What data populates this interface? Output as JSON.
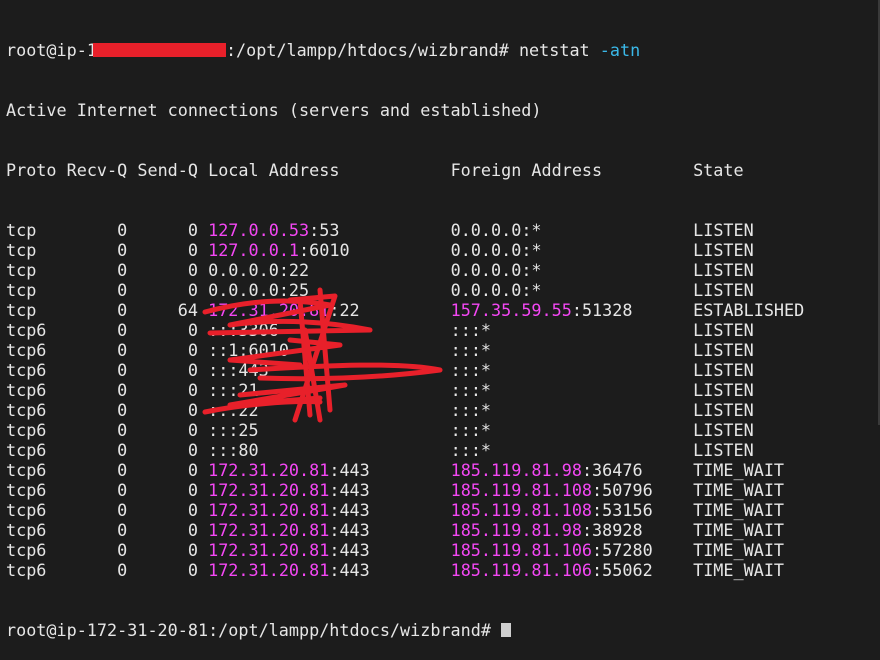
{
  "terminal": {
    "prompt_prefix": "root@ip-1",
    "prompt_suffix": ":/opt/lampp/htdocs/wizbrand# ",
    "command": "netstat ",
    "command_option": "-atn",
    "info_line": "Active Internet connections (servers and established)",
    "headers": [
      "Proto",
      "Recv-Q",
      "Send-Q",
      "Local Address",
      "Foreign Address",
      "State"
    ],
    "rows": [
      {
        "proto": "tcp",
        "recv": "0",
        "send": "0",
        "local": {
          "host": "127.0.0.53",
          "port": ":53",
          "hl": true
        },
        "foreign": {
          "host": "0.0.0.0",
          "port": ":*",
          "hl": false
        },
        "state": "LISTEN"
      },
      {
        "proto": "tcp",
        "recv": "0",
        "send": "0",
        "local": {
          "host": "127.0.0.1",
          "port": ":6010",
          "hl": true
        },
        "foreign": {
          "host": "0.0.0.0",
          "port": ":*",
          "hl": false
        },
        "state": "LISTEN"
      },
      {
        "proto": "tcp",
        "recv": "0",
        "send": "0",
        "local": {
          "host": "0.0.0.0",
          "port": ":22",
          "hl": false
        },
        "foreign": {
          "host": "0.0.0.0",
          "port": ":*",
          "hl": false
        },
        "state": "LISTEN"
      },
      {
        "proto": "tcp",
        "recv": "0",
        "send": "0",
        "local": {
          "host": "0.0.0.0",
          "port": ":25",
          "hl": false
        },
        "foreign": {
          "host": "0.0.0.0",
          "port": ":*",
          "hl": false
        },
        "state": "LISTEN"
      },
      {
        "proto": "tcp",
        "recv": "0",
        "send": "64",
        "local": {
          "host": "172.31.20.81",
          "port": ":22",
          "hl": true
        },
        "foreign": {
          "host": "157.35.59.55",
          "port": ":51328",
          "hl": true
        },
        "state": "ESTABLISHED"
      },
      {
        "proto": "tcp6",
        "recv": "0",
        "send": "0",
        "local": {
          "host": "::",
          "port": ":3306",
          "hl": false
        },
        "foreign": {
          "host": "::",
          "port": ":*",
          "hl": false
        },
        "state": "LISTEN"
      },
      {
        "proto": "tcp6",
        "recv": "0",
        "send": "0",
        "local": {
          "host": "::1",
          "port": ":6010",
          "hl": false
        },
        "foreign": {
          "host": "::",
          "port": ":*",
          "hl": false
        },
        "state": "LISTEN"
      },
      {
        "proto": "tcp6",
        "recv": "0",
        "send": "0",
        "local": {
          "host": "::",
          "port": ":443",
          "hl": false
        },
        "foreign": {
          "host": "::",
          "port": ":*",
          "hl": false
        },
        "state": "LISTEN"
      },
      {
        "proto": "tcp6",
        "recv": "0",
        "send": "0",
        "local": {
          "host": "::",
          "port": ":21",
          "hl": false
        },
        "foreign": {
          "host": "::",
          "port": ":*",
          "hl": false
        },
        "state": "LISTEN"
      },
      {
        "proto": "tcp6",
        "recv": "0",
        "send": "0",
        "local": {
          "host": "::",
          "port": ":22",
          "hl": false
        },
        "foreign": {
          "host": "::",
          "port": ":*",
          "hl": false
        },
        "state": "LISTEN"
      },
      {
        "proto": "tcp6",
        "recv": "0",
        "send": "0",
        "local": {
          "host": "::",
          "port": ":25",
          "hl": false
        },
        "foreign": {
          "host": "::",
          "port": ":*",
          "hl": false
        },
        "state": "LISTEN"
      },
      {
        "proto": "tcp6",
        "recv": "0",
        "send": "0",
        "local": {
          "host": "::",
          "port": ":80",
          "hl": false
        },
        "foreign": {
          "host": "::",
          "port": ":*",
          "hl": false
        },
        "state": "LISTEN"
      },
      {
        "proto": "tcp6",
        "recv": "0",
        "send": "0",
        "local": {
          "host": "172.31.20.81",
          "port": ":443",
          "hl": true
        },
        "foreign": {
          "host": "185.119.81.98",
          "port": ":36476",
          "hl": true
        },
        "state": "TIME_WAIT"
      },
      {
        "proto": "tcp6",
        "recv": "0",
        "send": "0",
        "local": {
          "host": "172.31.20.81",
          "port": ":443",
          "hl": true
        },
        "foreign": {
          "host": "185.119.81.108",
          "port": ":50796",
          "hl": true
        },
        "state": "TIME_WAIT"
      },
      {
        "proto": "tcp6",
        "recv": "0",
        "send": "0",
        "local": {
          "host": "172.31.20.81",
          "port": ":443",
          "hl": true
        },
        "foreign": {
          "host": "185.119.81.108",
          "port": ":53156",
          "hl": true
        },
        "state": "TIME_WAIT"
      },
      {
        "proto": "tcp6",
        "recv": "0",
        "send": "0",
        "local": {
          "host": "172.31.20.81",
          "port": ":443",
          "hl": true
        },
        "foreign": {
          "host": "185.119.81.98",
          "port": ":38928",
          "hl": true
        },
        "state": "TIME_WAIT"
      },
      {
        "proto": "tcp6",
        "recv": "0",
        "send": "0",
        "local": {
          "host": "172.31.20.81",
          "port": ":443",
          "hl": true
        },
        "foreign": {
          "host": "185.119.81.106",
          "port": ":57280",
          "hl": true
        },
        "state": "TIME_WAIT"
      },
      {
        "proto": "tcp6",
        "recv": "0",
        "send": "0",
        "local": {
          "host": "172.31.20.81",
          "port": ":443",
          "hl": true
        },
        "foreign": {
          "host": "185.119.81.106",
          "port": ":55062",
          "hl": true
        },
        "state": "TIME_WAIT"
      }
    ],
    "final_prompt": "root@ip-172-31-20-81:/opt/lampp/htdocs/wizbrand# ",
    "colors": {
      "background": "#1c1c1c",
      "text": "#e6e6e6",
      "ip_highlight": "#f447f4",
      "option": "#3ab8e8",
      "redaction": "#e8202a"
    }
  }
}
